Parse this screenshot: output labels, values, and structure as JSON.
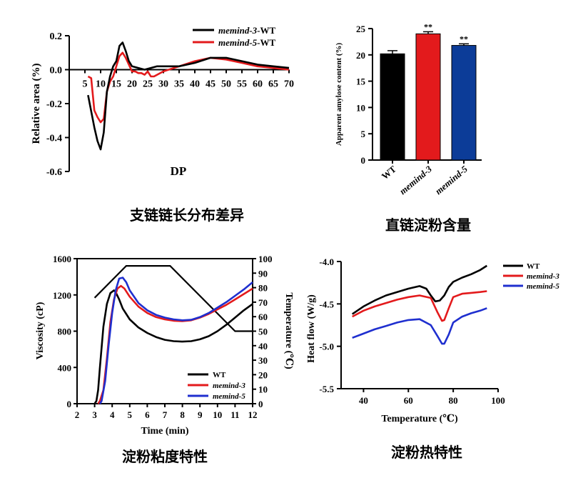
{
  "chart_data": [
    {
      "type": "line",
      "title": "",
      "caption": "支链链长分布差异",
      "xlabel": "DP",
      "ylabel": "Relative area (%)",
      "xlim": [
        0,
        70
      ],
      "ylim": [
        -0.6,
        0.2
      ],
      "x_ticks": [
        "5",
        "10",
        "15",
        "20",
        "25",
        "30",
        "35",
        "40",
        "45",
        "50",
        "55",
        "60",
        "65",
        "70"
      ],
      "y_ticks": [
        "0.2",
        "0.0",
        "-0.2",
        "-0.4",
        "-0.6"
      ],
      "grid": false,
      "legend": "top-right",
      "series": [
        {
          "name": "memind-3",
          "legend_suffix": "-WT",
          "color": "#000000",
          "x": [
            6,
            8,
            9,
            10,
            11,
            12,
            13,
            14,
            15,
            16,
            17,
            18,
            19,
            20,
            22,
            24,
            26,
            28,
            30,
            35,
            40,
            45,
            50,
            55,
            60,
            65,
            70
          ],
          "y": [
            -0.15,
            -0.34,
            -0.42,
            -0.47,
            -0.37,
            -0.13,
            -0.04,
            0.02,
            0.05,
            0.14,
            0.16,
            0.11,
            0.05,
            0.02,
            0.01,
            0.0,
            0.01,
            0.02,
            0.02,
            0.02,
            0.04,
            0.07,
            0.07,
            0.05,
            0.03,
            0.02,
            0.01
          ]
        },
        {
          "name": "memind-5",
          "legend_suffix": "-WT",
          "color": "#e31a1c",
          "x": [
            6,
            7,
            8,
            9,
            10,
            11,
            12,
            13,
            14,
            15,
            16,
            17,
            18,
            19,
            20,
            21,
            22,
            23,
            24,
            25,
            26,
            27,
            28,
            30,
            35,
            40,
            45,
            50,
            55,
            60,
            65,
            70
          ],
          "y": [
            -0.04,
            -0.05,
            -0.24,
            -0.28,
            -0.31,
            -0.29,
            -0.13,
            -0.07,
            -0.04,
            0.02,
            0.08,
            0.1,
            0.07,
            0.03,
            -0.01,
            -0.01,
            -0.02,
            -0.02,
            -0.03,
            -0.01,
            -0.04,
            -0.04,
            -0.03,
            -0.01,
            0.02,
            0.05,
            0.07,
            0.06,
            0.04,
            0.02,
            0.01,
            0.0
          ]
        }
      ]
    },
    {
      "type": "bar",
      "title": "",
      "caption": "直链淀粉含量",
      "xlabel": "",
      "ylabel": "Apparent amylose content (%)",
      "ylim": [
        0,
        25
      ],
      "y_ticks": [
        "0",
        "5",
        "10",
        "15",
        "20",
        "25"
      ],
      "categories": [
        "WT",
        "memind-3",
        "memind-5"
      ],
      "values": [
        20.2,
        24.0,
        21.8
      ],
      "errors": [
        0.6,
        0.4,
        0.3
      ],
      "significance": [
        "",
        "**",
        "**"
      ],
      "colors": [
        "#000000",
        "#e31a1c",
        "#0c3c98"
      ]
    },
    {
      "type": "line",
      "title": "",
      "caption": "淀粉粘度特性",
      "xlabel": "Time (min)",
      "ylabel": "Viscosity (cP)",
      "y2label": "Temperature (℃)",
      "xlim": [
        2,
        12
      ],
      "ylim": [
        0,
        1600
      ],
      "y2lim": [
        0,
        100
      ],
      "x_ticks": [
        "2",
        "3",
        "4",
        "5",
        "6",
        "7",
        "8",
        "9",
        "10",
        "11",
        "12"
      ],
      "y_ticks": [
        "0",
        "400",
        "800",
        "1200",
        "1600"
      ],
      "y2_ticks": [
        "0",
        "10",
        "20",
        "30",
        "40",
        "50",
        "60",
        "70",
        "80",
        "90",
        "100"
      ],
      "grid": false,
      "legend": "bottom-right",
      "temperature": {
        "x": [
          3,
          4.8,
          5.0,
          7.3,
          11.0,
          12
        ],
        "y": [
          73,
          95,
          95,
          95,
          50,
          50
        ],
        "color": "#000000"
      },
      "series": [
        {
          "name": "WT",
          "color": "#000000",
          "x": [
            3.0,
            3.1,
            3.2,
            3.3,
            3.5,
            3.7,
            3.9,
            4.1,
            4.2,
            4.4,
            4.6,
            5.0,
            5.5,
            6.0,
            6.5,
            7.0,
            7.5,
            8.0,
            8.5,
            9.0,
            9.5,
            10.0,
            10.5,
            11.0,
            11.5,
            12.0
          ],
          "y": [
            0,
            30,
            150,
            400,
            850,
            1100,
            1220,
            1250,
            1230,
            1150,
            1050,
            930,
            840,
            780,
            735,
            705,
            690,
            685,
            690,
            710,
            745,
            800,
            870,
            950,
            1030,
            1100
          ]
        },
        {
          "name": "memind-3",
          "color": "#e31a1c",
          "x": [
            3.2,
            3.3,
            3.5,
            3.7,
            3.9,
            4.1,
            4.3,
            4.5,
            4.7,
            5.0,
            5.5,
            6.0,
            6.5,
            7.0,
            7.5,
            8.0,
            8.5,
            9.0,
            9.5,
            10.0,
            10.5,
            11.0,
            11.5,
            12.0
          ],
          "y": [
            0,
            30,
            150,
            500,
            900,
            1150,
            1270,
            1300,
            1270,
            1180,
            1070,
            1000,
            955,
            930,
            915,
            910,
            920,
            950,
            990,
            1040,
            1090,
            1150,
            1210,
            1270
          ]
        },
        {
          "name": "memind-5",
          "color": "#1f2fcf",
          "x": [
            3.3,
            3.4,
            3.6,
            3.8,
            4.0,
            4.2,
            4.4,
            4.6,
            4.8,
            5.0,
            5.5,
            6.0,
            6.5,
            7.0,
            7.5,
            8.0,
            8.5,
            9.0,
            9.5,
            10.0,
            10.5,
            11.0,
            11.5,
            12.0
          ],
          "y": [
            0,
            30,
            250,
            650,
            1000,
            1250,
            1380,
            1390,
            1340,
            1250,
            1110,
            1030,
            980,
            950,
            930,
            920,
            925,
            955,
            1000,
            1060,
            1120,
            1190,
            1260,
            1340
          ]
        }
      ]
    },
    {
      "type": "line",
      "title": "",
      "caption": "淀粉热特性",
      "xlabel": "Temperature (℃)",
      "ylabel": "Heat flow (W/g)",
      "xlim": [
        30,
        100
      ],
      "ylim": [
        -5.5,
        -4.0
      ],
      "x_ticks": [
        "40",
        "60",
        "80",
        "100"
      ],
      "y_ticks": [
        "-4.0",
        "-4.5",
        "-5.0",
        "-5.5"
      ],
      "grid": false,
      "legend": "top-right",
      "series": [
        {
          "name": "WT",
          "color": "#000000",
          "x": [
            35,
            40,
            45,
            50,
            55,
            60,
            65,
            68,
            70,
            72,
            74,
            76,
            78,
            80,
            84,
            88,
            92,
            95
          ],
          "y": [
            -4.62,
            -4.53,
            -4.46,
            -4.4,
            -4.36,
            -4.32,
            -4.29,
            -4.32,
            -4.4,
            -4.47,
            -4.46,
            -4.4,
            -4.3,
            -4.24,
            -4.19,
            -4.15,
            -4.1,
            -4.05
          ]
        },
        {
          "name": "memind-3",
          "color": "#e31a1c",
          "x": [
            35,
            40,
            45,
            50,
            55,
            60,
            65,
            70,
            73,
            75,
            76,
            78,
            80,
            84,
            88,
            92,
            95
          ],
          "y": [
            -4.65,
            -4.58,
            -4.53,
            -4.49,
            -4.45,
            -4.42,
            -4.4,
            -4.43,
            -4.6,
            -4.7,
            -4.69,
            -4.55,
            -4.42,
            -4.38,
            -4.37,
            -4.36,
            -4.35
          ]
        },
        {
          "name": "memind-5",
          "color": "#1f2fcf",
          "x": [
            35,
            40,
            45,
            50,
            55,
            60,
            65,
            70,
            73,
            75,
            76,
            78,
            80,
            84,
            88,
            92,
            95
          ],
          "y": [
            -4.9,
            -4.85,
            -4.8,
            -4.76,
            -4.72,
            -4.69,
            -4.68,
            -4.75,
            -4.88,
            -4.97,
            -4.97,
            -4.86,
            -4.72,
            -4.65,
            -4.61,
            -4.58,
            -4.55
          ]
        }
      ]
    }
  ]
}
